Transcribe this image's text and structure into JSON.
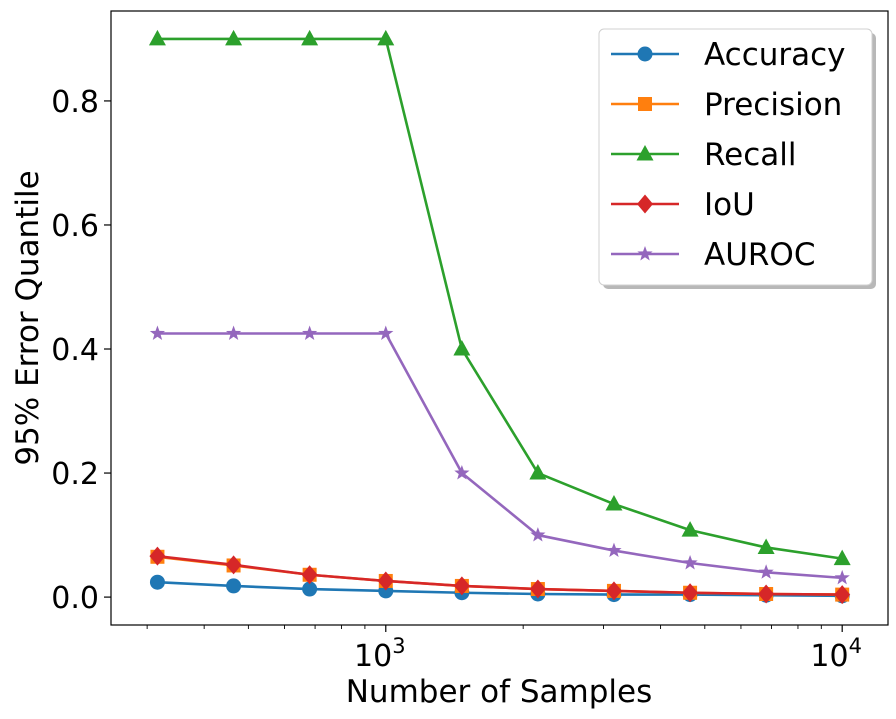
{
  "chart_data": {
    "type": "line",
    "xlabel": "Number of Samples",
    "ylabel": "95% Error Quantile",
    "xscale": "log",
    "xlim": [
      250,
      12600
    ],
    "ylim": [
      -0.045,
      0.945
    ],
    "grid": false,
    "legend_position": "top-right",
    "x": [
      316,
      464,
      681,
      1000,
      1468,
      2154,
      3162,
      4642,
      6813,
      10000
    ],
    "yticks": [
      {
        "value": 0.0,
        "label": "0.0"
      },
      {
        "value": 0.2,
        "label": "0.2"
      },
      {
        "value": 0.4,
        "label": "0.4"
      },
      {
        "value": 0.6,
        "label": "0.6"
      },
      {
        "value": 0.8,
        "label": "0.8"
      }
    ],
    "xticks_major": [
      {
        "value": 1000,
        "base": "10",
        "exp": "3"
      },
      {
        "value": 10000,
        "base": "10",
        "exp": "4"
      }
    ],
    "series": [
      {
        "name": "Accuracy",
        "color": "#1f77b4",
        "marker": "circle",
        "values": [
          0.024,
          0.018,
          0.013,
          0.01,
          0.007,
          0.005,
          0.004,
          0.004,
          0.003,
          0.002
        ]
      },
      {
        "name": "Precision",
        "color": "#ff7f0e",
        "marker": "square",
        "values": [
          0.065,
          0.051,
          0.036,
          0.026,
          0.018,
          0.013,
          0.01,
          0.007,
          0.005,
          0.004
        ]
      },
      {
        "name": "Recall",
        "color": "#2ca02c",
        "marker": "triangle",
        "values": [
          0.9,
          0.9,
          0.9,
          0.9,
          0.4,
          0.2,
          0.15,
          0.108,
          0.08,
          0.062
        ]
      },
      {
        "name": "IoU",
        "color": "#d62728",
        "marker": "diamond",
        "values": [
          0.066,
          0.052,
          0.036,
          0.026,
          0.018,
          0.013,
          0.01,
          0.007,
          0.005,
          0.004
        ]
      },
      {
        "name": "AUROC",
        "color": "#9467bd",
        "marker": "star",
        "values": [
          0.425,
          0.425,
          0.425,
          0.425,
          0.2,
          0.1,
          0.075,
          0.055,
          0.04,
          0.031
        ]
      }
    ]
  }
}
